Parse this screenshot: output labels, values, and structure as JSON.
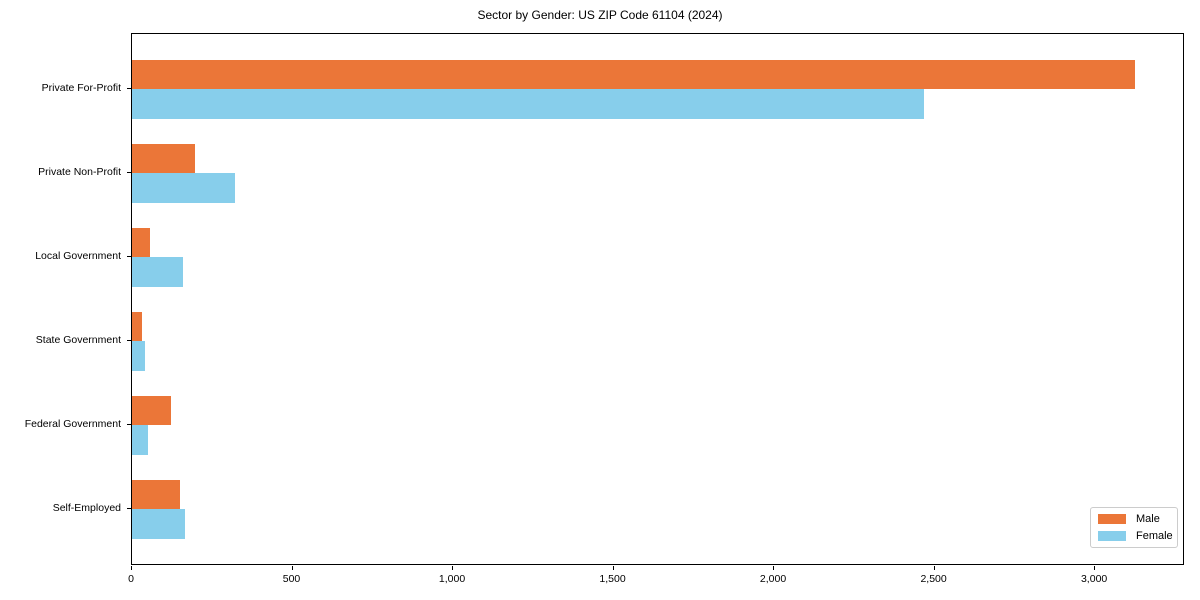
{
  "chart_data": {
    "type": "bar",
    "orientation": "horizontal",
    "title": "Sector by Gender: US ZIP Code 61104 (2024)",
    "xlabel": "",
    "ylabel": "",
    "categories": [
      "Private For-Profit",
      "Private Non-Profit",
      "Local Government",
      "State Government",
      "Federal Government",
      "Self-Employed"
    ],
    "series": [
      {
        "name": "Male",
        "color": "#eb7638",
        "values": [
          3124,
          197,
          56,
          31,
          120,
          151
        ]
      },
      {
        "name": "Female",
        "color": "#87ceeb",
        "values": [
          2466,
          322,
          160,
          41,
          50,
          164
        ]
      }
    ],
    "xlim": [
      0,
      3280
    ],
    "x_tick_values": [
      0,
      500,
      1000,
      1500,
      2000,
      2500,
      3000
    ],
    "x_tick_labels": [
      "0",
      "500",
      "1,000",
      "1,500",
      "2,000",
      "2,500",
      "3,000"
    ],
    "grid": false,
    "legend_position": "lower right"
  }
}
